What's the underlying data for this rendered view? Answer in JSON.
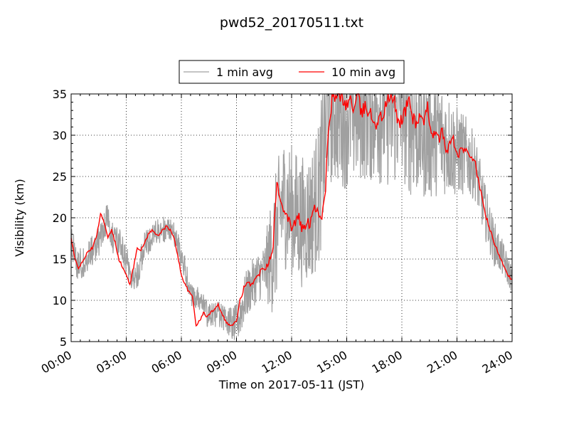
{
  "chart_data": {
    "type": "line",
    "title": "pwd52_20170511.txt",
    "xlabel": "Time on 2017-05-11 (JST)",
    "ylabel": "Visibility (km)",
    "xlim": [
      0,
      24
    ],
    "ylim": [
      5,
      35
    ],
    "x_unit": "hours",
    "xticks": [
      0,
      3,
      6,
      9,
      12,
      15,
      18,
      21,
      24
    ],
    "xtick_labels": [
      "00:00",
      "03:00",
      "06:00",
      "09:00",
      "12:00",
      "15:00",
      "18:00",
      "21:00",
      "24:00"
    ],
    "yticks": [
      5,
      10,
      15,
      20,
      25,
      30,
      35
    ],
    "ytick_labels": [
      "5",
      "10",
      "15",
      "20",
      "25",
      "30",
      "35"
    ],
    "grid": true,
    "legend": {
      "position": "top-center",
      "ncol": 2
    },
    "series": [
      {
        "name": "1 min avg",
        "color": "#a0a0a0",
        "noise": true,
        "amplitude": [
          [
            0,
            1.2
          ],
          [
            3,
            1.2
          ],
          [
            6,
            1.0
          ],
          [
            8.5,
            1.0
          ],
          [
            9.2,
            1.8
          ],
          [
            10.5,
            2.0
          ],
          [
            11.0,
            5.0
          ],
          [
            13.0,
            5.0
          ],
          [
            14.0,
            6.0
          ],
          [
            18.5,
            6.0
          ],
          [
            20.5,
            4.0
          ],
          [
            22.0,
            2.5
          ],
          [
            24,
            1.0
          ]
        ],
        "x": [
          0,
          0.3,
          0.6,
          1.0,
          1.5,
          2.0,
          2.3,
          2.7,
          3.2,
          3.5,
          4.0,
          4.5,
          5.0,
          5.5,
          6.0,
          6.5,
          7.0,
          7.5,
          8.0,
          8.5,
          9.0,
          9.5,
          10.0,
          10.5,
          11.0,
          11.5,
          12.0,
          12.5,
          13.0,
          13.5,
          14.0,
          14.5,
          15.0,
          15.5,
          16.0,
          16.5,
          17.0,
          17.5,
          18.0,
          18.5,
          19.0,
          19.5,
          20.0,
          20.5,
          21.0,
          21.5,
          22.0,
          22.5,
          23.0,
          23.5,
          24.0
        ],
        "y": [
          17.5,
          14.5,
          14.5,
          15.5,
          17.0,
          20.5,
          17.0,
          17.0,
          13.5,
          12.5,
          16.5,
          18.0,
          18.5,
          18.5,
          15.5,
          11.0,
          10.0,
          8.0,
          8.5,
          7.5,
          7.0,
          10.5,
          12.5,
          13.5,
          16.0,
          22.0,
          21.0,
          19.5,
          20.0,
          23.0,
          33.5,
          33.5,
          33.0,
          33.5,
          34.0,
          33.5,
          33.5,
          33.0,
          34.0,
          32.0,
          31.0,
          30.0,
          30.0,
          29.0,
          28.0,
          27.5,
          26.0,
          21.0,
          17.0,
          15.0,
          12.5
        ]
      },
      {
        "name": "10 min avg",
        "color": "#ff0000",
        "x": [
          0,
          0.2,
          0.4,
          0.6,
          0.8,
          1.0,
          1.2,
          1.4,
          1.6,
          1.8,
          2.0,
          2.2,
          2.4,
          2.6,
          2.8,
          3.0,
          3.2,
          3.4,
          3.6,
          3.8,
          4.0,
          4.2,
          4.4,
          4.6,
          4.8,
          5.0,
          5.2,
          5.4,
          5.6,
          5.8,
          6.0,
          6.2,
          6.4,
          6.6,
          6.8,
          7.0,
          7.2,
          7.4,
          7.6,
          7.8,
          8.0,
          8.2,
          8.4,
          8.6,
          8.8,
          9.0,
          9.2,
          9.4,
          9.6,
          9.8,
          10.0,
          10.2,
          10.4,
          10.6,
          10.8,
          11.0,
          11.2,
          11.4,
          11.6,
          11.8,
          12.0,
          12.2,
          12.4,
          12.6,
          12.8,
          13.0,
          13.2,
          13.4,
          13.6,
          13.8,
          14.0,
          14.2,
          14.4,
          14.6,
          14.8,
          15.0,
          15.2,
          15.4,
          15.6,
          15.8,
          16.0,
          16.2,
          16.4,
          16.6,
          16.8,
          17.0,
          17.2,
          17.4,
          17.6,
          17.8,
          18.0,
          18.2,
          18.4,
          18.6,
          18.8,
          19.0,
          19.2,
          19.4,
          19.6,
          19.8,
          20.0,
          20.2,
          20.4,
          20.6,
          20.8,
          21.0,
          21.2,
          21.4,
          21.6,
          21.8,
          22.0,
          22.2,
          22.4,
          22.6,
          22.8,
          23.0,
          23.2,
          23.4,
          23.6,
          23.8,
          24.0
        ],
        "y": [
          17.5,
          15.0,
          14.0,
          14.5,
          15.5,
          16.0,
          16.5,
          18.0,
          20.5,
          19.5,
          17.5,
          18.5,
          17.0,
          15.0,
          14.0,
          13.0,
          12.0,
          14.0,
          16.5,
          16.0,
          17.0,
          18.0,
          18.5,
          18.0,
          18.0,
          18.5,
          19.0,
          18.5,
          17.5,
          15.5,
          13.0,
          12.0,
          11.0,
          10.5,
          7.0,
          7.5,
          8.5,
          8.0,
          8.5,
          9.0,
          9.5,
          8.5,
          7.5,
          7.0,
          7.0,
          7.5,
          10.0,
          11.5,
          12.0,
          12.0,
          12.5,
          13.0,
          14.0,
          14.0,
          15.0,
          17.0,
          24.5,
          21.5,
          21.5,
          20.0,
          19.0,
          19.5,
          20.0,
          18.5,
          19.0,
          19.5,
          21.5,
          21.0,
          20.0,
          22.0,
          30.0,
          34.5,
          34.5,
          35.0,
          34.5,
          33.5,
          34.5,
          33.0,
          35.0,
          32.5,
          33.5,
          33.0,
          32.0,
          31.5,
          32.0,
          32.5,
          34.5,
          34.5,
          34.0,
          31.5,
          32.0,
          33.0,
          34.5,
          32.0,
          31.5,
          32.5,
          31.0,
          33.5,
          30.5,
          30.0,
          29.5,
          30.5,
          28.0,
          29.0,
          29.5,
          27.5,
          28.0,
          28.5,
          27.5,
          27.5,
          26.5,
          24.0,
          22.0,
          20.0,
          18.5,
          17.0,
          16.0,
          15.0,
          14.0,
          13.0,
          12.5
        ]
      }
    ]
  }
}
